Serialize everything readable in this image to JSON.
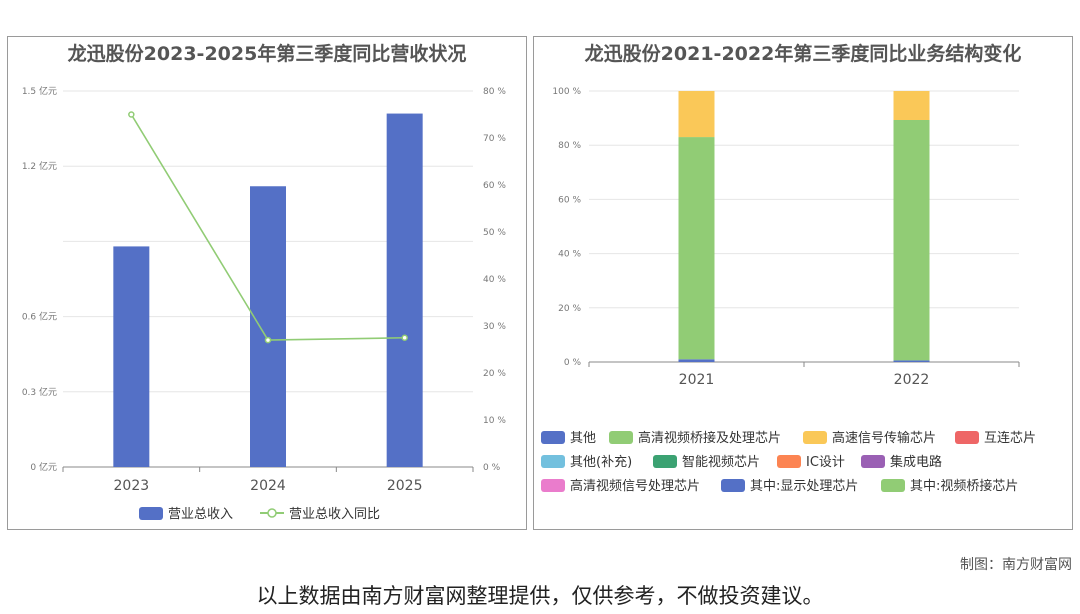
{
  "credit": "制图：南方财富网",
  "disclaimer": "以上数据由南方财富网整理提供，仅供参考，不做投资建议。",
  "chart_data": [
    {
      "type": "bar",
      "title": "龙迅股份2023-2025年第三季度同比营收状况",
      "categories": [
        "2023",
        "2024",
        "2025"
      ],
      "series": [
        {
          "name": "营业总收入",
          "type": "bar",
          "axis": "left",
          "color": "#5470c6",
          "values": [
            0.88,
            1.12,
            1.41
          ]
        },
        {
          "name": "营业总收入同比",
          "type": "line",
          "axis": "right",
          "color": "#91cc75",
          "values": [
            75,
            27,
            27.5
          ]
        }
      ],
      "yleft": {
        "range": [
          0,
          1.5
        ],
        "ticks": [
          "0 亿元",
          "0.3 亿元",
          "0.6 亿元",
          "",
          "1.2 亿元",
          "1.5 亿元"
        ]
      },
      "yright": {
        "range": [
          0,
          80
        ],
        "ticks": [
          "0 %",
          "10 %",
          "20 %",
          "30 %",
          "40 %",
          "50 %",
          "60 %",
          "70 %",
          "80 %"
        ]
      },
      "grid": true,
      "legend": "bottom"
    },
    {
      "type": "bar",
      "stacked": true,
      "title": "龙迅股份2021-2022年第三季度同比业务结构变化",
      "categories": [
        "2021",
        "2022"
      ],
      "y_ticks": [
        "0 %",
        "20 %",
        "40 %",
        "60 %",
        "80 %",
        "100 %"
      ],
      "ylim": [
        0,
        100
      ],
      "series": [
        {
          "name": "其他",
          "color": "#5470c6",
          "values": [
            1.0,
            0.6
          ]
        },
        {
          "name": "高清视频桥接及处理芯片",
          "color": "#91cc75",
          "values": [
            82,
            88.7
          ]
        },
        {
          "name": "高速信号传输芯片",
          "color": "#fac858",
          "values": [
            17,
            10.7
          ]
        },
        {
          "name": "互连芯片",
          "color": "#ee6666",
          "values": [
            0,
            0
          ]
        },
        {
          "name": "其他(补充)",
          "color": "#73c0de",
          "values": [
            0,
            0
          ]
        },
        {
          "name": "智能视频芯片",
          "color": "#3ba272",
          "values": [
            0,
            0
          ]
        },
        {
          "name": "IC设计",
          "color": "#fc8452",
          "values": [
            0,
            0
          ]
        },
        {
          "name": "集成电路",
          "color": "#9a60b4",
          "values": [
            0,
            0
          ]
        },
        {
          "name": "高清视频信号处理芯片",
          "color": "#ea7ccc",
          "values": [
            0,
            0
          ]
        },
        {
          "name": "其中:显示处理芯片",
          "color": "#5470c6",
          "values": [
            0,
            0
          ]
        },
        {
          "name": "其中:视频桥接芯片",
          "color": "#91cc75",
          "values": [
            0,
            0
          ]
        }
      ],
      "grid": true,
      "legend": "bottom"
    }
  ]
}
